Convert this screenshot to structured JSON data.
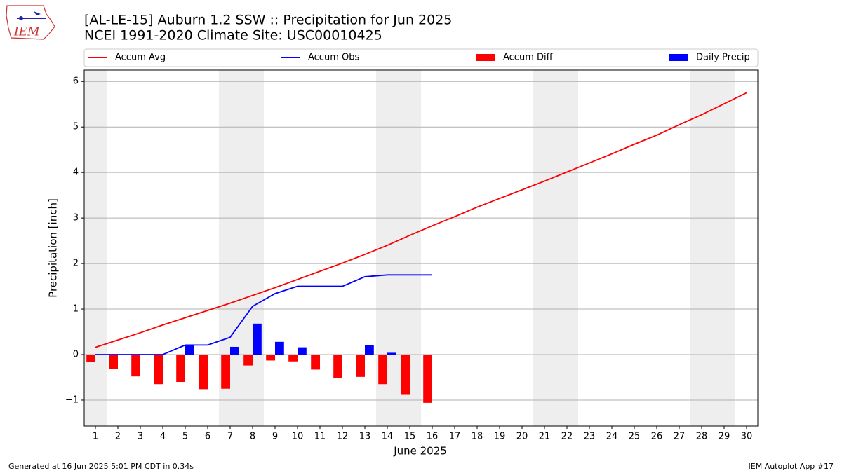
{
  "chart_data": {
    "type": "bar",
    "title": "[AL-LE-15] Auburn 1.2 SSW :: Precipitation for Jun 2025",
    "subtitle": "NCEI 1991-2020 Climate Site: USC00010425",
    "x_label": "June 2025",
    "y_label": "Precipitation [inch]",
    "logo_text": "IEM",
    "footer_left": "Generated at 16 Jun 2025 5:01 PM CDT in 0.34s",
    "footer_right": "IEM Autoplot App #17",
    "x": [
      1,
      2,
      3,
      4,
      5,
      6,
      7,
      8,
      9,
      10,
      11,
      12,
      13,
      14,
      15,
      16,
      17,
      18,
      19,
      20,
      21,
      22,
      23,
      24,
      25,
      26,
      27,
      28,
      29,
      30
    ],
    "xlim": [
      0.5,
      30.5
    ],
    "xticks": [
      1,
      2,
      3,
      4,
      5,
      6,
      7,
      8,
      9,
      10,
      11,
      12,
      13,
      14,
      15,
      16,
      17,
      18,
      19,
      20,
      21,
      22,
      23,
      24,
      25,
      26,
      27,
      28,
      29,
      30
    ],
    "ylim": [
      -1.57,
      6.25
    ],
    "yticks": [
      {
        "value": -1,
        "label": "−1"
      },
      0,
      1,
      2,
      3,
      4,
      5,
      6
    ],
    "grid": true,
    "shaded_spans": [
      [
        0.5,
        1.5
      ],
      [
        6.5,
        8.5
      ],
      [
        13.5,
        15.5
      ],
      [
        20.5,
        22.5
      ],
      [
        27.5,
        29.5
      ]
    ],
    "shade_color": "#eeeeee",
    "series": [
      {
        "name": "Accum Avg",
        "kind": "line",
        "color": "#ff0000",
        "values": [
          0.16,
          0.32,
          0.48,
          0.65,
          0.81,
          0.97,
          1.13,
          1.3,
          1.47,
          1.65,
          1.83,
          2.01,
          2.2,
          2.4,
          2.62,
          2.83,
          3.03,
          3.24,
          3.43,
          3.62,
          3.81,
          4.01,
          4.21,
          4.41,
          4.62,
          4.82,
          5.05,
          5.27,
          5.51,
          5.75
        ]
      },
      {
        "name": "Accum Obs",
        "kind": "line",
        "color": "#0000ff",
        "values": [
          0,
          0,
          0,
          0,
          0.21,
          0.21,
          0.38,
          1.06,
          1.34,
          1.5,
          1.5,
          1.5,
          1.71,
          1.75,
          1.75,
          1.75,
          null,
          null,
          null,
          null,
          null,
          null,
          null,
          null,
          null,
          null,
          null,
          null,
          null,
          null
        ]
      },
      {
        "name": "Accum Diff",
        "kind": "bar",
        "side": "left",
        "color": "#ff0000",
        "values": [
          -0.16,
          -0.32,
          -0.48,
          -0.65,
          -0.6,
          -0.76,
          -0.75,
          -0.24,
          -0.13,
          -0.15,
          -0.33,
          -0.51,
          -0.49,
          -0.65,
          -0.87,
          -1.06,
          null,
          null,
          null,
          null,
          null,
          null,
          null,
          null,
          null,
          null,
          null,
          null,
          null,
          null
        ]
      },
      {
        "name": "Daily Precip",
        "kind": "bar",
        "side": "right",
        "color": "#0000ff",
        "values": [
          0,
          0,
          0,
          0,
          0.21,
          0,
          0.17,
          0.68,
          0.28,
          0.16,
          0,
          0,
          0.21,
          0.04,
          0,
          0,
          null,
          null,
          null,
          null,
          null,
          null,
          null,
          null,
          null,
          null,
          null,
          null,
          null,
          null
        ]
      }
    ]
  }
}
